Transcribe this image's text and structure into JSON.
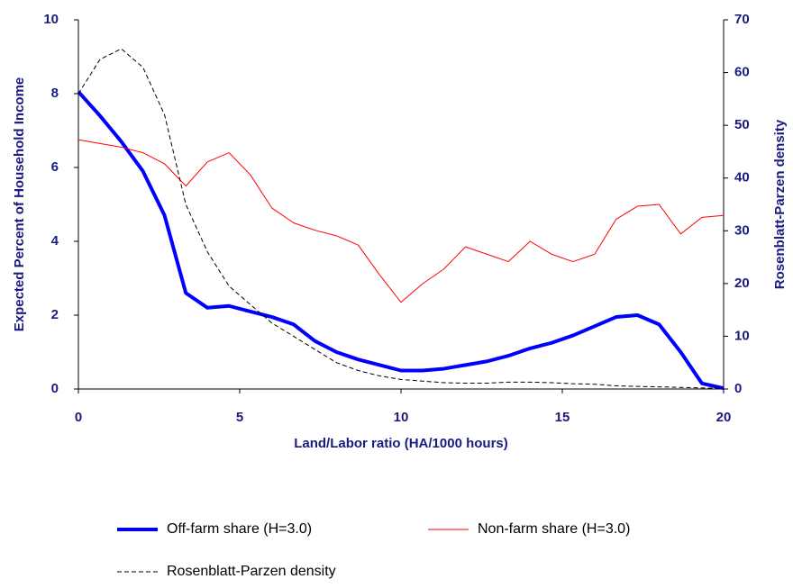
{
  "chart_data": {
    "type": "line",
    "x_label": "Land/Labor ratio (HA/1000 hours)",
    "y_label": "Expected Percent of Household Income",
    "y2_label": "Rosenblatt-Parzen density",
    "x": [
      0,
      0.67,
      1.33,
      2,
      2.67,
      3.33,
      4,
      4.67,
      5.33,
      6,
      6.67,
      7.33,
      8,
      8.67,
      9.33,
      10,
      10.67,
      11.33,
      12,
      12.67,
      13.33,
      14,
      14.67,
      15.33,
      16,
      16.67,
      17.33,
      18,
      18.67,
      19.33,
      20
    ],
    "series": [
      {
        "name": "Off-farm share (H=3.0)",
        "color": "#0000ff",
        "width": 4,
        "dash": "solid",
        "values": [
          8.05,
          7.4,
          6.7,
          5.9,
          4.7,
          2.6,
          2.2,
          2.25,
          2.1,
          1.95,
          1.75,
          1.3,
          1.0,
          0.8,
          0.65,
          0.5,
          0.5,
          0.55,
          0.65,
          0.75,
          0.9,
          1.1,
          1.25,
          1.45,
          1.7,
          1.95,
          2.0,
          1.75,
          1.0,
          0.15,
          0.02
        ]
      },
      {
        "name": "Non-farm share (H=3.0)",
        "color": "#ff0000",
        "width": 1,
        "dash": "solid",
        "values": [
          6.75,
          6.65,
          6.55,
          6.4,
          6.1,
          5.5,
          6.15,
          6.4,
          5.8,
          4.9,
          4.5,
          4.3,
          4.15,
          3.9,
          3.1,
          2.35,
          2.85,
          3.25,
          3.85,
          3.65,
          3.45,
          4.0,
          3.65,
          3.45,
          3.65,
          4.6,
          4.95,
          5.0,
          4.2,
          4.65,
          4.7
        ]
      },
      {
        "name": "Rosenblatt-Parzen density",
        "color": "#000000",
        "width": 1,
        "dash": "dashed",
        "axis": "y2",
        "values": [
          56,
          62.5,
          64.5,
          61,
          52,
          35,
          26,
          19.5,
          16,
          12.5,
          10,
          7.5,
          5,
          3.5,
          2.5,
          1.8,
          1.5,
          1.2,
          1.1,
          1.1,
          1.3,
          1.3,
          1.2,
          1.0,
          0.9,
          0.6,
          0.5,
          0.4,
          0.3,
          0.2,
          0.1
        ]
      }
    ],
    "xlim": [
      0,
      20
    ],
    "xticks": [
      0,
      5,
      10,
      15,
      20
    ],
    "ylim": [
      0,
      10
    ],
    "yticks": [
      0,
      2,
      4,
      6,
      8,
      10
    ],
    "y2lim": [
      0,
      70
    ],
    "y2ticks": [
      0,
      10,
      20,
      30,
      40,
      50,
      60,
      70
    ]
  }
}
